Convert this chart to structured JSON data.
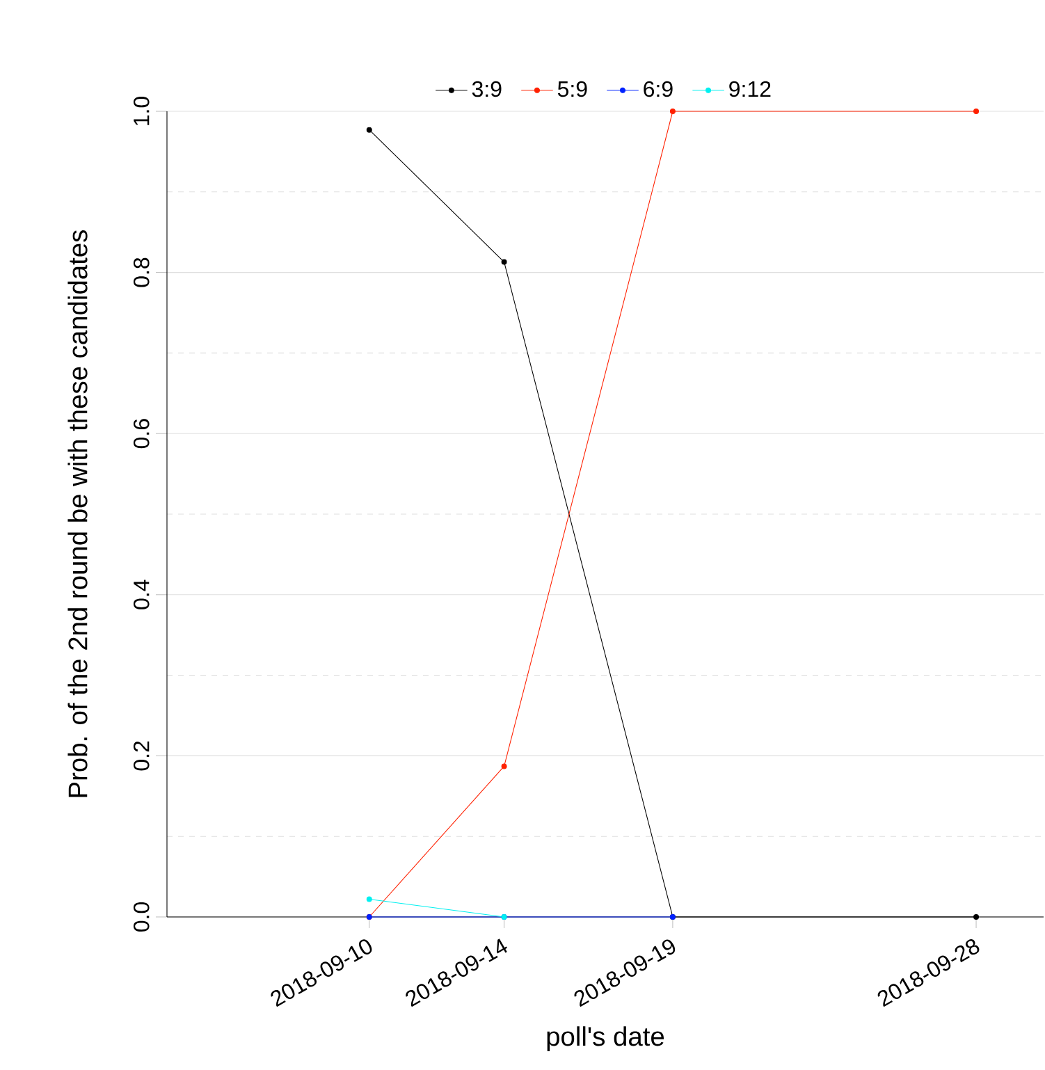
{
  "chart_data": {
    "type": "line",
    "x": [
      "2018-09-10",
      "2018-09-14",
      "2018-09-19",
      "2018-09-28"
    ],
    "series": [
      {
        "name": "3:9",
        "color": "#000000",
        "values": [
          0.977,
          0.813,
          0,
          0
        ]
      },
      {
        "name": "5:9",
        "color": "#ff2000",
        "values": [
          0,
          0.187,
          1.0,
          1.0
        ]
      },
      {
        "name": "6:9",
        "color": "#0022ff",
        "values": [
          0,
          0,
          0,
          null
        ]
      },
      {
        "name": "9:12",
        "color": "#00f0f0",
        "values": [
          0.022,
          0,
          null,
          null
        ]
      }
    ],
    "xlabel": "poll's date",
    "ylabel": "Prob. of the 2nd round be with these candidates",
    "xlim": [
      "2018-09-04",
      "2018-09-30"
    ],
    "xticks": [
      "2018-09-10",
      "2018-09-14",
      "2018-09-19",
      "2018-09-28"
    ],
    "ylim": [
      0,
      1
    ],
    "yticks": [
      {
        "value": 0,
        "label": "0.0"
      },
      0.2,
      0.4,
      0.6,
      0.8,
      {
        "value": 1,
        "label": "1.0"
      }
    ],
    "grid": "y",
    "legend": "top",
    "marker": "circle",
    "line_style": "solid"
  }
}
